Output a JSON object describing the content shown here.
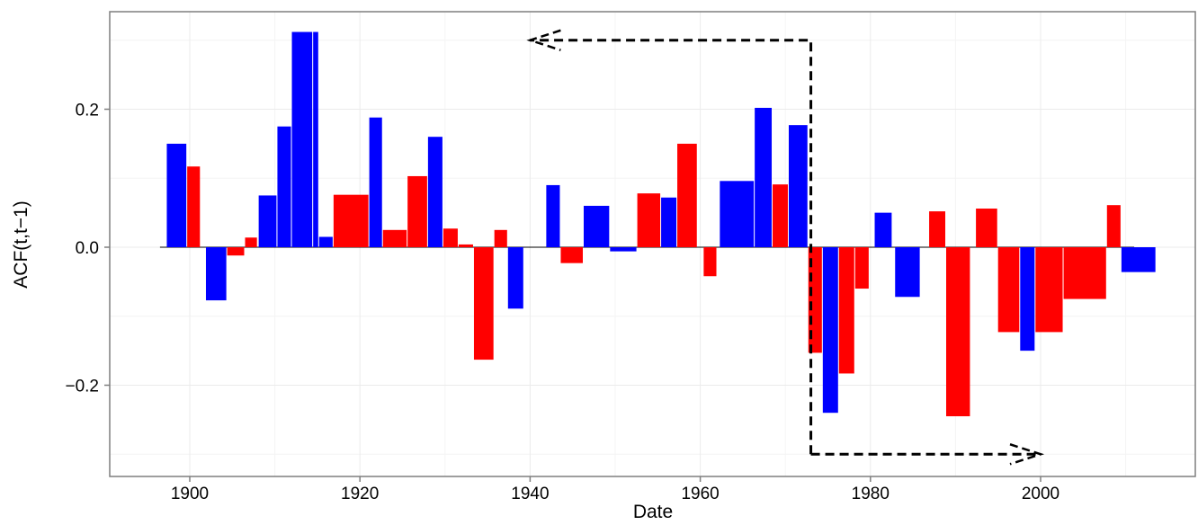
{
  "chart_data": {
    "type": "bar",
    "title": "",
    "xlabel": "Date",
    "ylabel": "ACF(t,t−1)",
    "xlim": [
      1890.6,
      1929.0
    ],
    "ylim": [
      -0.33,
      0.34
    ],
    "x_ticks": [
      {
        "value": 1900,
        "label": "1900"
      },
      {
        "value": 1920,
        "label": "1920"
      },
      {
        "value": 1940,
        "label": "1940"
      },
      {
        "value": 1960,
        "label": "1960"
      },
      {
        "value": 1980,
        "label": "1980"
      },
      {
        "value": 2000,
        "label": "2000"
      }
    ],
    "y_ticks": [
      {
        "value": 0.2,
        "label": "0.2"
      },
      {
        "value": 0.0,
        "label": "0.0"
      },
      {
        "value": -0.2,
        "label": "−0.2"
      }
    ],
    "grid": true,
    "legend": "none",
    "colors": {
      "positive_class": "#0000FF",
      "negative_class": "#FF0000",
      "panel_border": "#7F7F7F",
      "grid": "#EBEBEB",
      "arrow": "#000000"
    },
    "bars": [
      {
        "x0": 1897.3,
        "x1": 1899.7,
        "value": 0.15,
        "color": "blue"
      },
      {
        "x0": 1899.7,
        "x1": 1901.3,
        "value": 0.117,
        "color": "red"
      },
      {
        "x0": 1901.9,
        "x1": 1904.4,
        "value": -0.077,
        "color": "blue"
      },
      {
        "x0": 1904.4,
        "x1": 1906.5,
        "value": -0.012,
        "color": "red"
      },
      {
        "x0": 1906.5,
        "x1": 1908.0,
        "value": 0.014,
        "color": "red"
      },
      {
        "x0": 1908.1,
        "x1": 1910.3,
        "value": 0.075,
        "color": "blue"
      },
      {
        "x0": 1910.3,
        "x1": 1912.0,
        "value": 0.175,
        "color": "blue"
      },
      {
        "x0": 1912.0,
        "x1": 1914.5,
        "value": 0.312,
        "color": "blue"
      },
      {
        "x0": 1914.5,
        "x1": 1915.2,
        "value": 0.312,
        "color": "blue"
      },
      {
        "x0": 1915.2,
        "x1": 1916.9,
        "value": 0.015,
        "color": "blue"
      },
      {
        "x0": 1916.9,
        "x1": 1921.1,
        "value": 0.076,
        "color": "red"
      },
      {
        "x0": 1921.1,
        "x1": 1922.7,
        "value": 0.188,
        "color": "blue"
      },
      {
        "x0": 1922.7,
        "x1": 1925.6,
        "value": 0.025,
        "color": "red"
      },
      {
        "x0": 1925.6,
        "x1": 1928.0,
        "value": 0.103,
        "color": "red"
      },
      {
        "x0": 1928.0,
        "x1": 1929.8,
        "value": 0.16,
        "color": "blue"
      },
      {
        "x0": 1929.8,
        "x1": 1931.6,
        "value": 0.027,
        "color": "red"
      },
      {
        "x0": 1931.6,
        "x1": 1933.4,
        "value": 0.004,
        "color": "red"
      },
      {
        "x0": 1933.4,
        "x1": 1935.8,
        "value": -0.163,
        "color": "red"
      },
      {
        "x0": 1935.8,
        "x1": 1937.4,
        "value": 0.025,
        "color": "red"
      },
      {
        "x0": 1937.4,
        "x1": 1939.3,
        "value": -0.089,
        "color": "blue"
      },
      {
        "x0": 1941.9,
        "x1": 1943.6,
        "value": 0.09,
        "color": "blue"
      },
      {
        "x0": 1943.6,
        "x1": 1946.3,
        "value": -0.023,
        "color": "red"
      },
      {
        "x0": 1946.3,
        "x1": 1949.4,
        "value": 0.06,
        "color": "blue"
      },
      {
        "x0": 1949.4,
        "x1": 1952.6,
        "value": -0.006,
        "color": "blue"
      },
      {
        "x0": 1952.6,
        "x1": 1955.4,
        "value": 0.078,
        "color": "red"
      },
      {
        "x0": 1955.4,
        "x1": 1957.3,
        "value": 0.072,
        "color": "blue"
      },
      {
        "x0": 1957.3,
        "x1": 1959.7,
        "value": 0.15,
        "color": "red"
      },
      {
        "x0": 1960.4,
        "x1": 1962.0,
        "value": -0.042,
        "color": "red"
      },
      {
        "x0": 1962.3,
        "x1": 1966.4,
        "value": 0.096,
        "color": "blue"
      },
      {
        "x0": 1966.4,
        "x1": 1968.5,
        "value": 0.202,
        "color": "blue"
      },
      {
        "x0": 1968.5,
        "x1": 1970.4,
        "value": 0.091,
        "color": "red"
      },
      {
        "x0": 1970.4,
        "x1": 1972.7,
        "value": 0.177,
        "color": "blue"
      },
      {
        "x0": 1972.7,
        "x1": 1974.4,
        "value": -0.153,
        "color": "red"
      },
      {
        "x0": 1974.4,
        "x1": 1976.3,
        "value": -0.24,
        "color": "blue"
      },
      {
        "x0": 1976.3,
        "x1": 1978.2,
        "value": -0.183,
        "color": "red"
      },
      {
        "x0": 1978.2,
        "x1": 1979.9,
        "value": -0.06,
        "color": "red"
      },
      {
        "x0": 1980.5,
        "x1": 1982.6,
        "value": 0.05,
        "color": "blue"
      },
      {
        "x0": 1982.9,
        "x1": 1985.9,
        "value": -0.072,
        "color": "blue"
      },
      {
        "x0": 1986.9,
        "x1": 1988.9,
        "value": 0.052,
        "color": "red"
      },
      {
        "x0": 1988.9,
        "x1": 1991.8,
        "value": -0.245,
        "color": "red"
      },
      {
        "x0": 1992.4,
        "x1": 1995.0,
        "value": 0.056,
        "color": "red"
      },
      {
        "x0": 1995.0,
        "x1": 1997.6,
        "value": -0.123,
        "color": "red"
      },
      {
        "x0": 1997.6,
        "x1": 1999.4,
        "value": -0.15,
        "color": "blue"
      },
      {
        "x0": 1999.4,
        "x1": 2002.7,
        "value": -0.123,
        "color": "red"
      },
      {
        "x0": 2002.7,
        "x1": 2007.8,
        "value": -0.075,
        "color": "red"
      },
      {
        "x0": 2007.8,
        "x1": 2009.5,
        "value": 0.061,
        "color": "red"
      },
      {
        "x0": 2009.5,
        "x1": 2013.6,
        "value": -0.036,
        "color": "blue"
      }
    ],
    "annotations": [
      {
        "type": "dashed-arrow",
        "points": [
          [
            1973.0,
            -0.3
          ],
          [
            1973.0,
            0.3
          ],
          [
            1940.0,
            0.3
          ]
        ],
        "direction": "left"
      },
      {
        "type": "dashed-arrow",
        "points": [
          [
            1973.0,
            -0.3
          ],
          [
            2000.0,
            -0.3
          ]
        ],
        "direction": "right"
      }
    ]
  }
}
